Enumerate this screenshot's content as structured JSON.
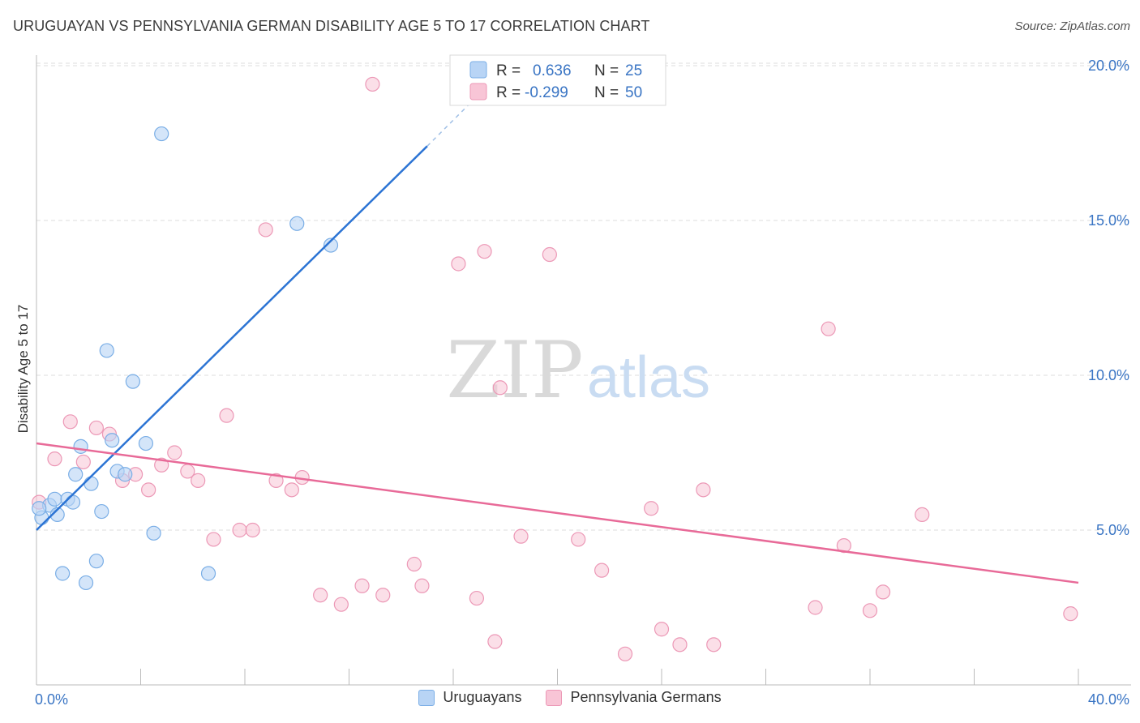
{
  "title": "URUGUAYAN VS PENNSYLVANIA GERMAN DISABILITY AGE 5 TO 17 CORRELATION CHART",
  "source": "Source: ZipAtlas.com",
  "watermark": {
    "zip": "ZIP",
    "atlas": "atlas"
  },
  "colors": {
    "blue_fill": "#b8d4f5",
    "blue_stroke": "#7aaee6",
    "blue_line": "#2c74d4",
    "pink_fill": "#f8c5d6",
    "pink_stroke": "#ec98b6",
    "pink_line": "#e86a98",
    "label_blue": "#3a75c4",
    "grid": "#dddddd"
  },
  "legend_stats": [
    {
      "r_label": "R =",
      "r_value": "0.636",
      "n_label": "N =",
      "n_value": "25",
      "series": "blue"
    },
    {
      "r_label": "R =",
      "r_value": "-0.299",
      "n_label": "N =",
      "n_value": "50",
      "series": "pink"
    }
  ],
  "legend_bottom": [
    "Uruguayans",
    "Pennsylvania Germans"
  ],
  "chart_data": {
    "type": "scatter",
    "title": "URUGUAYAN VS PENNSYLVANIA GERMAN DISABILITY AGE 5 TO 17 CORRELATION CHART",
    "xlabel": "",
    "ylabel": "Disability Age 5 to 17",
    "xlim": [
      0,
      40
    ],
    "ylim": [
      0,
      20.5
    ],
    "x_tick_labels": [
      "0.0%",
      "40.0%"
    ],
    "y_ticks": [
      5,
      10,
      15,
      20
    ],
    "y_tick_labels": [
      "5.0%",
      "10.0%",
      "15.0%",
      "20.0%"
    ],
    "series": [
      {
        "name": "Uruguayans",
        "r": 0.636,
        "n": 25,
        "trend": {
          "x0": 0,
          "y0": 5.0,
          "x1": 15.0,
          "y1": 17.4,
          "x2": 17.5,
          "y2": 19.5
        },
        "points": [
          [
            0.2,
            5.4
          ],
          [
            0.5,
            5.8
          ],
          [
            0.7,
            6.0
          ],
          [
            0.8,
            5.5
          ],
          [
            1.0,
            3.6
          ],
          [
            1.2,
            6.0
          ],
          [
            1.4,
            5.9
          ],
          [
            1.5,
            6.8
          ],
          [
            1.7,
            7.7
          ],
          [
            1.9,
            3.3
          ],
          [
            2.1,
            6.5
          ],
          [
            2.3,
            4.0
          ],
          [
            2.5,
            5.6
          ],
          [
            2.7,
            10.8
          ],
          [
            2.9,
            7.9
          ],
          [
            3.1,
            6.9
          ],
          [
            3.4,
            6.8
          ],
          [
            3.7,
            9.8
          ],
          [
            4.2,
            7.8
          ],
          [
            4.5,
            4.9
          ],
          [
            4.8,
            17.8
          ],
          [
            6.6,
            3.6
          ],
          [
            10.0,
            14.9
          ],
          [
            11.3,
            14.2
          ],
          [
            0.1,
            5.7
          ]
        ]
      },
      {
        "name": "Pennsylvania Germans",
        "r": -0.299,
        "n": 50,
        "trend": {
          "x0": 0,
          "y0": 7.8,
          "x1": 40,
          "y1": 3.3
        },
        "points": [
          [
            0.1,
            5.9
          ],
          [
            0.7,
            7.3
          ],
          [
            1.3,
            8.5
          ],
          [
            1.8,
            7.2
          ],
          [
            2.3,
            8.3
          ],
          [
            2.8,
            8.1
          ],
          [
            3.3,
            6.6
          ],
          [
            3.8,
            6.8
          ],
          [
            4.3,
            6.3
          ],
          [
            4.8,
            7.1
          ],
          [
            5.3,
            7.5
          ],
          [
            5.8,
            6.9
          ],
          [
            6.2,
            6.6
          ],
          [
            6.8,
            4.7
          ],
          [
            7.3,
            8.7
          ],
          [
            7.8,
            5.0
          ],
          [
            8.3,
            5.0
          ],
          [
            8.8,
            14.7
          ],
          [
            9.2,
            6.6
          ],
          [
            9.8,
            6.3
          ],
          [
            10.2,
            6.7
          ],
          [
            10.9,
            2.9
          ],
          [
            11.7,
            2.6
          ],
          [
            12.5,
            3.2
          ],
          [
            12.9,
            19.4
          ],
          [
            13.3,
            2.9
          ],
          [
            14.5,
            3.9
          ],
          [
            14.8,
            3.2
          ],
          [
            16.2,
            13.6
          ],
          [
            16.9,
            2.8
          ],
          [
            17.2,
            14.0
          ],
          [
            17.6,
            1.4
          ],
          [
            17.8,
            9.6
          ],
          [
            18.6,
            4.8
          ],
          [
            19.7,
            13.9
          ],
          [
            20.8,
            4.7
          ],
          [
            21.7,
            3.7
          ],
          [
            22.6,
            1.0
          ],
          [
            23.6,
            5.7
          ],
          [
            24.0,
            1.8
          ],
          [
            24.7,
            1.3
          ],
          [
            25.6,
            6.3
          ],
          [
            26.0,
            1.3
          ],
          [
            29.9,
            2.5
          ],
          [
            30.4,
            11.5
          ],
          [
            31.0,
            4.5
          ],
          [
            32.0,
            2.4
          ],
          [
            32.5,
            3.0
          ],
          [
            34.0,
            5.5
          ],
          [
            39.7,
            2.3
          ]
        ]
      }
    ]
  }
}
